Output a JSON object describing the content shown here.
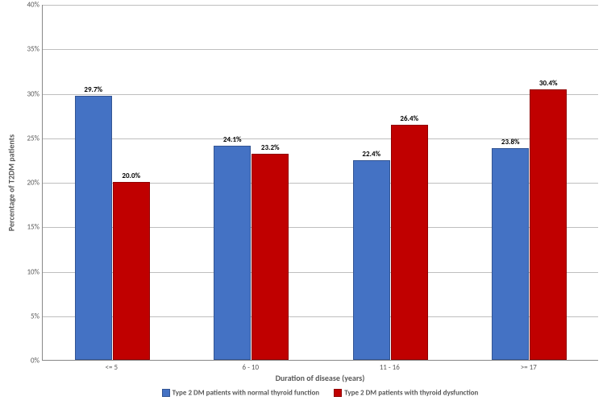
{
  "chart": {
    "type": "bar",
    "background_color": "#ffffff",
    "grid_color": "#bfbfbf",
    "axis_color": "#888888",
    "text_color": "#595959",
    "y_axis": {
      "title": "Percentage of T2DM patients",
      "min": 0,
      "max": 40,
      "step": 5,
      "format": "percent"
    },
    "x_axis": {
      "title": "Duration of disease (years)",
      "categories": [
        "<= 5",
        "6 - 10",
        "11 - 16",
        ">= 17"
      ]
    },
    "series": [
      {
        "name": "Type 2 DM patients with normal thyroid function",
        "color": "#4472c4",
        "values": [
          29.7,
          24.1,
          22.4,
          23.8
        ],
        "labels": [
          "29.7%",
          "24.1%",
          "22.4%",
          "23.8%"
        ]
      },
      {
        "name": "Type 2 DM patients with thyroid dysfunction",
        "color": "#c00000",
        "values": [
          20.0,
          23.2,
          26.4,
          30.4
        ],
        "labels": [
          "20.0%",
          "23.2%",
          "26.4%",
          "30.4%"
        ]
      }
    ],
    "label_fontsize": 9,
    "title_fontsize": 10,
    "bar_label_fontsize": 9
  }
}
